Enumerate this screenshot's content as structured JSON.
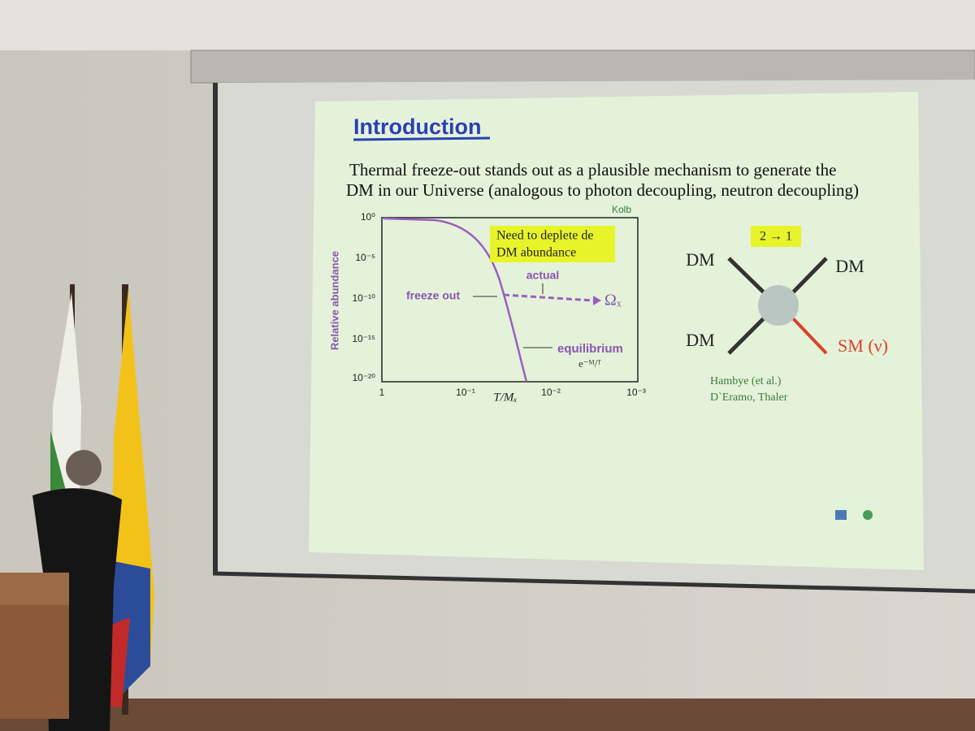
{
  "slide": {
    "title": "Introduction",
    "text_lines": [
      "Thermal freeze-out stands out as a plausible mechanism to generate the",
      "DM in our Universe (analogous to photon decoupling, neutron decoupling)"
    ],
    "plot": {
      "y_axis_label": "Relative abundance",
      "x_axis_label": "T/Mₓ",
      "credit": "Kolb",
      "y_tick_labels": [
        "10⁰",
        "10⁻⁵",
        "10⁻¹⁰",
        "10⁻¹⁵",
        "10⁻²⁰"
      ],
      "x_tick_labels": [
        "1",
        "10⁻¹",
        "10⁻²",
        "10⁻³"
      ],
      "callout_lines": [
        "Need to deplete de",
        "DM abundance"
      ],
      "annotations": {
        "actual": "actual",
        "freeze_out": "freeze out",
        "omega": "Ωₓ",
        "equilibrium": "equilibrium",
        "boltzmann": "e⁻ᴹ/ᵀ"
      }
    },
    "diagram": {
      "process": "2 → 1",
      "labels": [
        "DM",
        "DM",
        "DM",
        "SM (ν)"
      ],
      "references": [
        "Hambye (et al.)",
        "D`Eramo, Thaler"
      ]
    }
  }
}
